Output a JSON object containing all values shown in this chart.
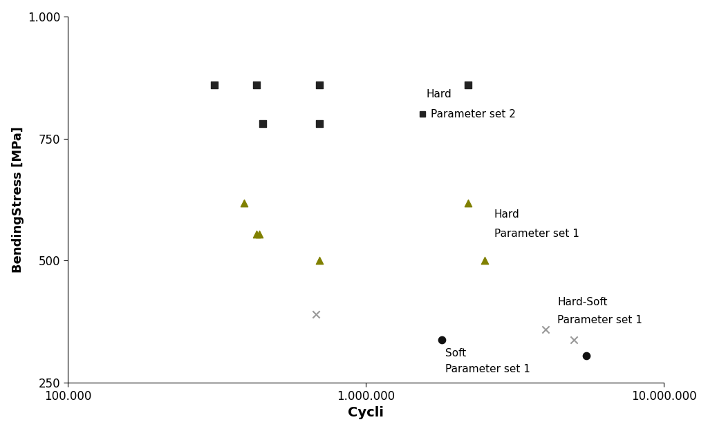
{
  "title": "",
  "xlabel": "Cycli",
  "ylabel": "BendingStress [MPa]",
  "xlim": [
    100000,
    10000000
  ],
  "ylim": [
    250,
    1000
  ],
  "yticks": [
    250,
    500,
    750,
    1000
  ],
  "ytick_labels": [
    "250",
    "500",
    "750",
    "1.000"
  ],
  "xtick_labels": [
    "100.000",
    "1.000.000",
    "10.000.000"
  ],
  "xtick_values": [
    100000,
    1000000,
    10000000
  ],
  "series": {
    "hard_param2": {
      "x": [
        310000,
        430000,
        450000,
        700000,
        700000,
        2200000
      ],
      "y": [
        860,
        860,
        780,
        780,
        860,
        860
      ],
      "marker": "s",
      "color": "#222222",
      "size": 55,
      "label": "Hard\nParameter set 2"
    },
    "hard_param1": {
      "x": [
        390000,
        430000,
        440000,
        700000,
        2200000,
        2500000
      ],
      "y": [
        618,
        555,
        555,
        500,
        618,
        500
      ],
      "marker": "^",
      "color": "#808000",
      "size": 55,
      "label": "Hard\nParameter set 1"
    },
    "hard_soft_param1": {
      "x": [
        680000,
        4000000,
        5000000
      ],
      "y": [
        390,
        360,
        338
      ],
      "marker": "x",
      "color": "#999999",
      "size": 55,
      "label": "Hard-Soft\nParameter set 1"
    },
    "soft_param1": {
      "x": [
        1800000,
        5500000
      ],
      "y": [
        338,
        305
      ],
      "marker": "o",
      "color": "#111111",
      "size": 55,
      "label": "Soft\nParameter set 1"
    }
  },
  "background_color": "#ffffff",
  "font_size": 12,
  "annotation_font_size": 11
}
